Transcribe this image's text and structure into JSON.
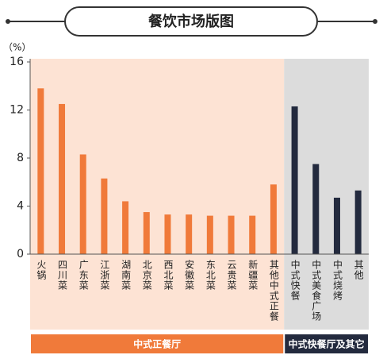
{
  "chart_data": {
    "type": "bar",
    "title": "餐饮市场版图",
    "ylabel": "（%）",
    "ylim": [
      0,
      16
    ],
    "yticks": [
      0,
      4,
      8,
      12,
      16
    ],
    "groups": [
      {
        "name": "中式正餐厅",
        "color": "#f07a3a",
        "background": "#fde3d4",
        "categories": [
          "火锅",
          "四川菜",
          "广东菜",
          "江浙菜",
          "湖南菜",
          "北京菜",
          "西北菜",
          "安徽菜",
          "东北菜",
          "云贵菜",
          "新疆菜",
          "其他中式正餐"
        ],
        "values": [
          13.8,
          12.5,
          8.3,
          6.3,
          4.4,
          3.5,
          3.3,
          3.3,
          3.2,
          3.2,
          3.2,
          5.8
        ]
      },
      {
        "name": "中式快餐厅及其它",
        "color": "#232a3e",
        "background": "#dcdcdc",
        "categories": [
          "中式快餐",
          "中式美食广场",
          "中式烧烤",
          "其他"
        ],
        "values": [
          12.3,
          7.5,
          4.7,
          5.3
        ]
      }
    ]
  }
}
